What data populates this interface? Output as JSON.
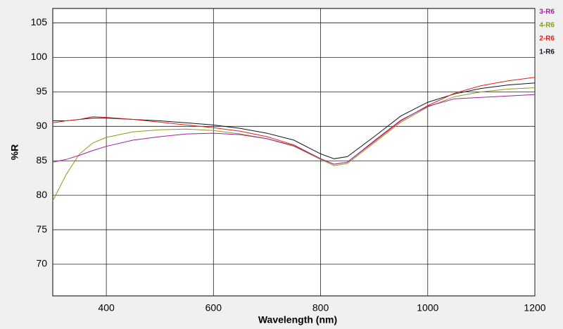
{
  "chart_data": {
    "type": "line",
    "x_label": "Wavelength (nm)",
    "y_label": "%R",
    "x": [
      300,
      325,
      350,
      375,
      400,
      450,
      500,
      550,
      600,
      650,
      700,
      750,
      800,
      825,
      850,
      900,
      950,
      1000,
      1050,
      1100,
      1150,
      1200
    ],
    "series": [
      {
        "name": "3-R6",
        "color": "#a020a0",
        "values": [
          84.8,
          85.2,
          85.8,
          86.5,
          87.1,
          88.0,
          88.5,
          88.9,
          89.0,
          88.8,
          88.2,
          87.2,
          85.3,
          84.5,
          84.8,
          87.9,
          90.9,
          92.9,
          94.0,
          94.2,
          94.4,
          94.6
        ]
      },
      {
        "name": "4-R6",
        "color": "#8c9a20",
        "values": [
          79.2,
          83.0,
          86.0,
          87.6,
          88.4,
          89.2,
          89.5,
          89.6,
          89.4,
          88.9,
          88.2,
          87.1,
          85.2,
          84.3,
          84.6,
          87.6,
          90.6,
          92.8,
          94.3,
          95.0,
          95.4,
          95.6
        ]
      },
      {
        "name": "2-R6",
        "color": "#e02020",
        "values": [
          90.5,
          90.8,
          91.0,
          91.4,
          91.3,
          91.0,
          90.6,
          90.2,
          89.8,
          89.3,
          88.5,
          87.3,
          85.3,
          84.5,
          84.8,
          87.8,
          90.8,
          93.0,
          94.8,
          95.9,
          96.6,
          97.1
        ]
      },
      {
        "name": "1-R6",
        "color": "#101820",
        "values": [
          90.8,
          90.8,
          91.0,
          91.2,
          91.2,
          91.0,
          90.8,
          90.5,
          90.2,
          89.7,
          89.0,
          88.0,
          86.0,
          85.3,
          85.6,
          88.5,
          91.5,
          93.5,
          94.7,
          95.5,
          96.0,
          96.3
        ]
      }
    ],
    "xlim": [
      300,
      1200
    ],
    "xticks": [
      400,
      600,
      800,
      1000,
      1200
    ],
    "ylim": [
      65.4,
      107.1
    ],
    "yticks": [
      70,
      75,
      80,
      85,
      90,
      95,
      100,
      105
    ],
    "grid": true,
    "legend_position": "top-right"
  }
}
